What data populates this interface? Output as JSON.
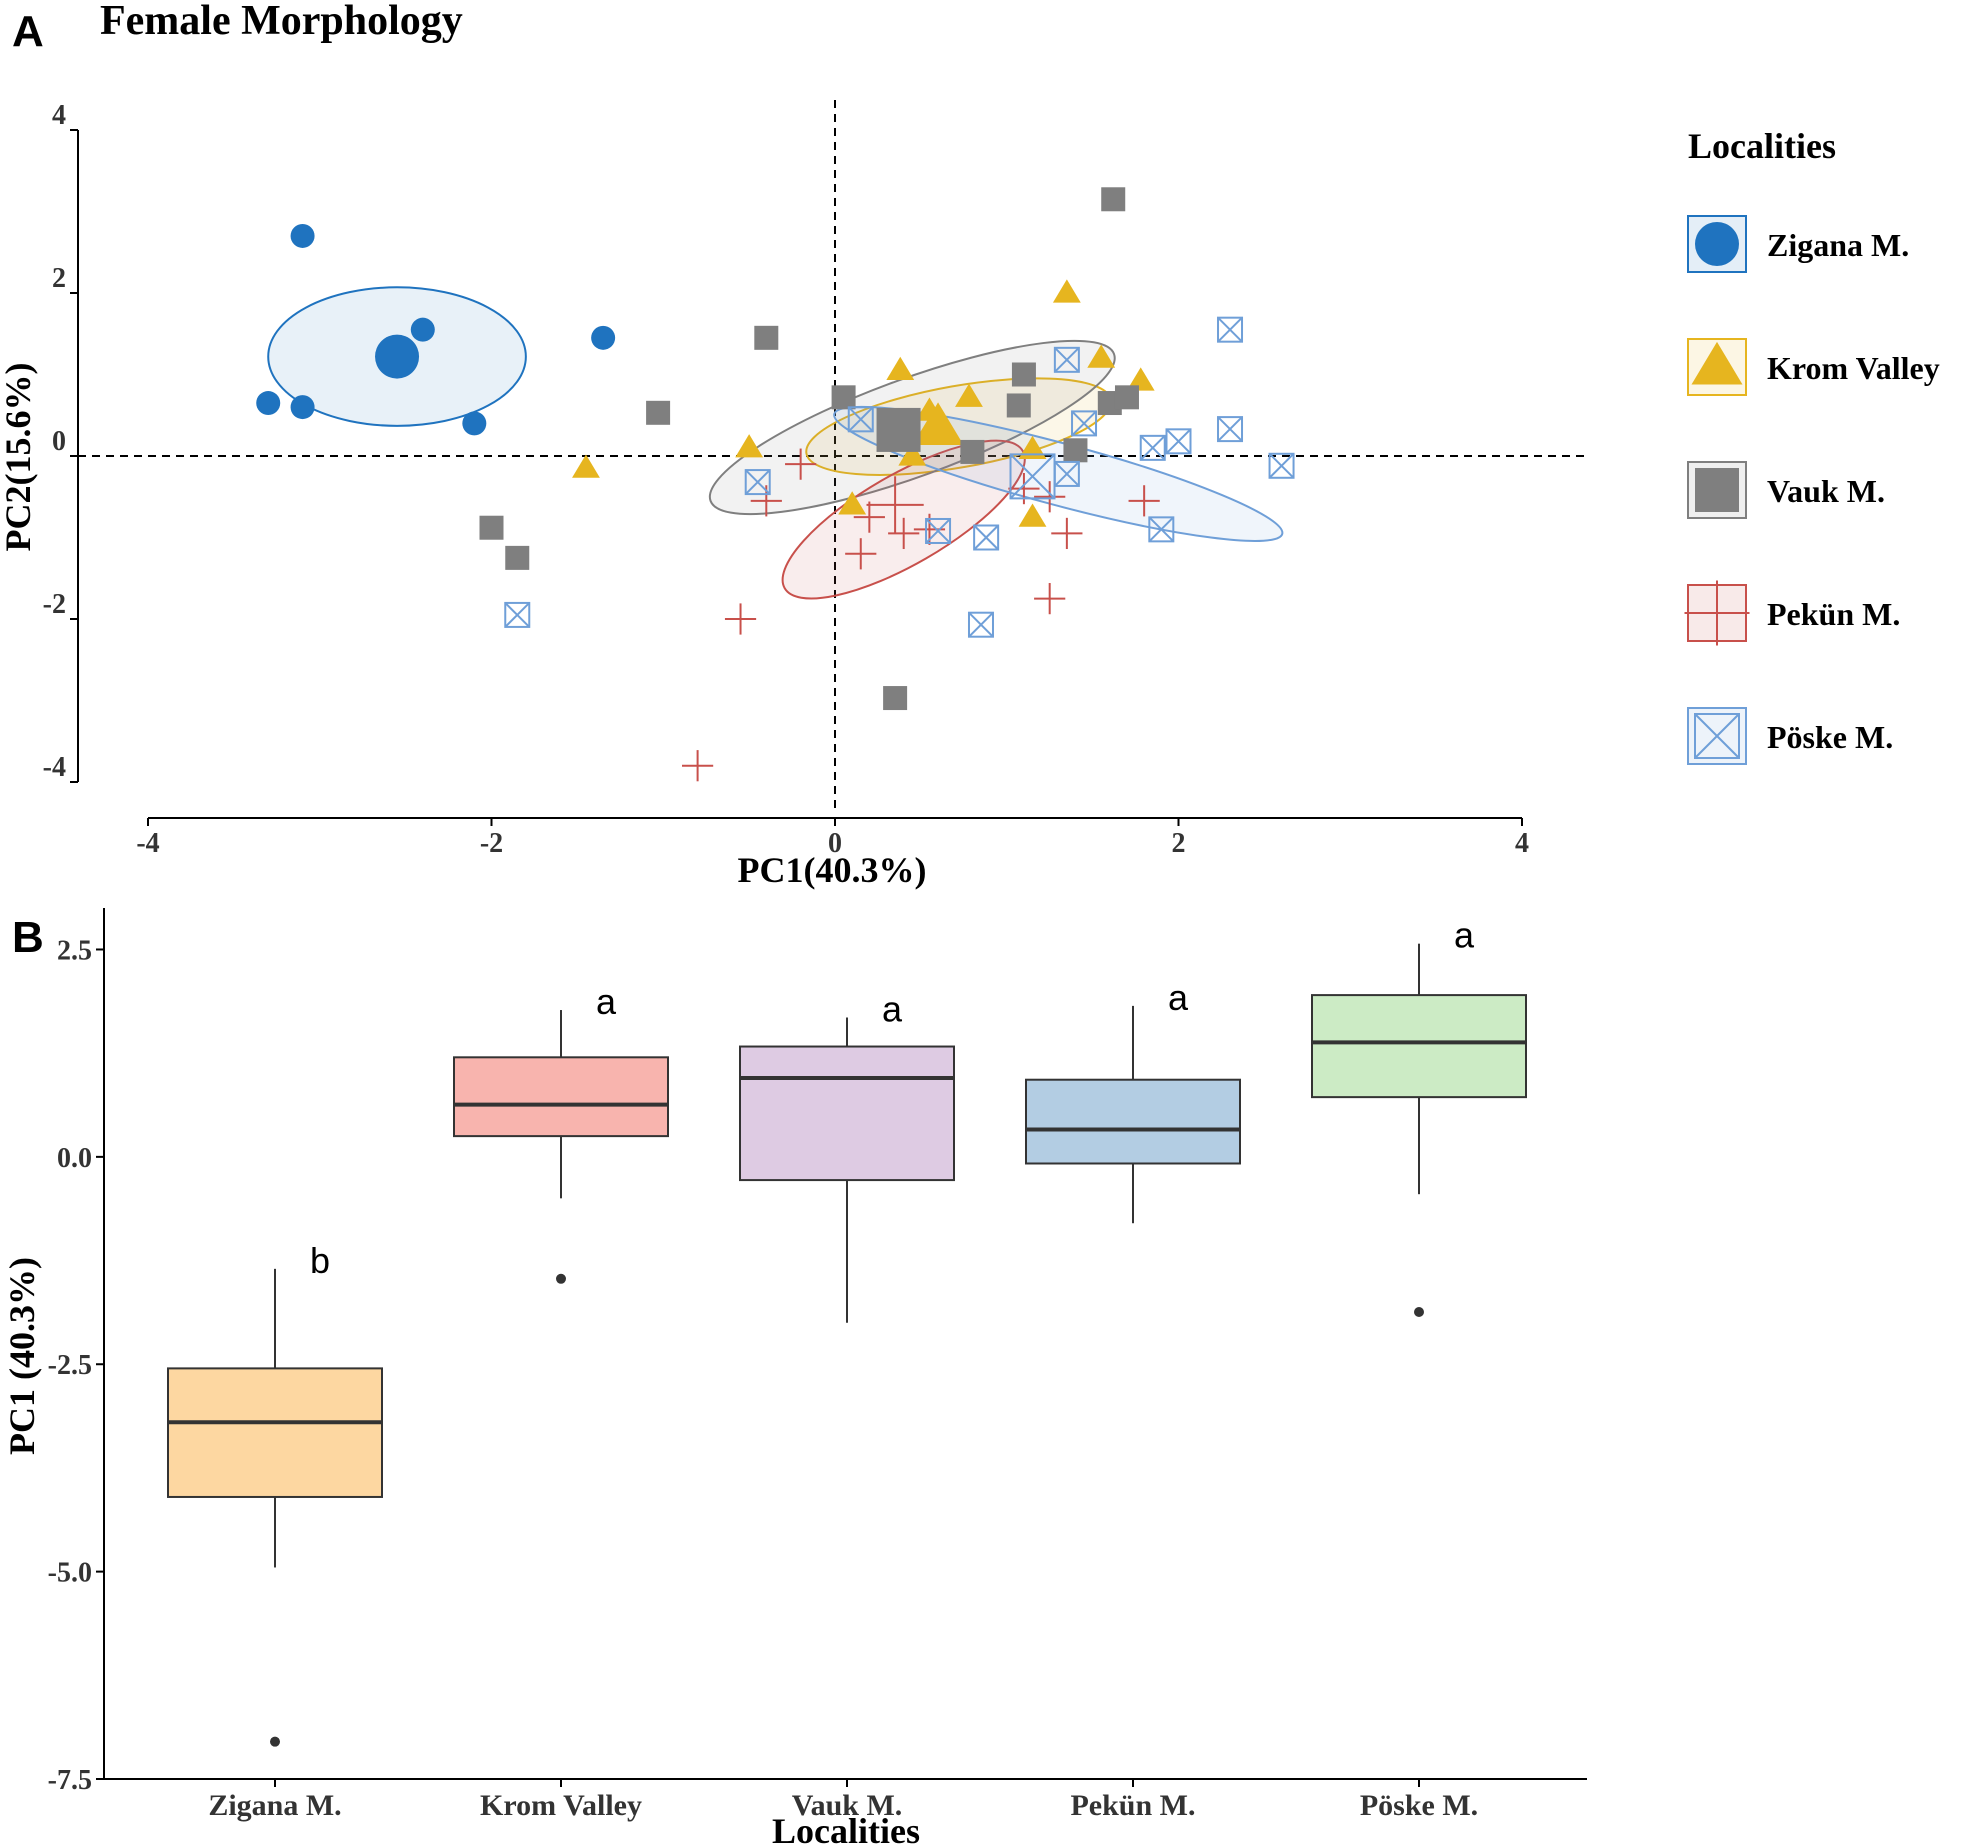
{
  "panel_labels": {
    "a": "A",
    "b": "B"
  },
  "chart_data": [
    {
      "type": "scatter",
      "title": "Female Morphology",
      "xlabel": "PC1(40.3%)",
      "ylabel": "PC2(15.6%)",
      "xlim": [
        -4,
        4
      ],
      "ylim": [
        -4,
        4
      ],
      "xticks": [
        -4,
        -2,
        0,
        2,
        4
      ],
      "yticks": [
        4,
        2,
        0,
        -2,
        -4
      ],
      "reference_lines": {
        "x": 0,
        "y": 0,
        "style": "dashed"
      },
      "grid": false,
      "legend": {
        "title": "Localities",
        "placement": "right",
        "items": [
          {
            "name": "Zigana M.",
            "shape": "circle",
            "color": "#1f73bf"
          },
          {
            "name": "Krom Valley",
            "shape": "triangle",
            "color": "#e6b51f"
          },
          {
            "name": "Vauk M.",
            "shape": "square",
            "color": "#7f7f7f"
          },
          {
            "name": "Pekün M.",
            "shape": "plus",
            "color": "#c8504b"
          },
          {
            "name": "Pöske M.",
            "shape": "square-x",
            "color": "#6f9fd8"
          }
        ]
      },
      "series": [
        {
          "name": "Zigana M.",
          "shape": "circle",
          "color": "#1f73bf",
          "points": [
            [
              -3.1,
              2.7
            ],
            [
              -2.4,
              1.55
            ],
            [
              -1.35,
              1.45
            ],
            [
              -3.3,
              0.65
            ],
            [
              -3.1,
              0.6
            ],
            [
              -2.1,
              0.4
            ]
          ],
          "centroid": [
            -2.55,
            1.22
          ],
          "ellipse": {
            "cx": -2.55,
            "cy": 1.22,
            "rx": 0.75,
            "ry": 0.85,
            "angle": 0
          }
        },
        {
          "name": "Krom Valley",
          "shape": "triangle",
          "color": "#e6b51f",
          "points": [
            [
              1.35,
              2.0
            ],
            [
              1.55,
              1.2
            ],
            [
              1.78,
              0.92
            ],
            [
              0.38,
              1.05
            ],
            [
              0.78,
              0.72
            ],
            [
              0.55,
              0.55
            ],
            [
              0.6,
              0.4
            ],
            [
              -0.5,
              0.1
            ],
            [
              -1.45,
              -0.15
            ],
            [
              1.15,
              0.08
            ],
            [
              0.45,
              0.0
            ],
            [
              0.1,
              -0.6
            ],
            [
              1.15,
              -0.75
            ]
          ],
          "centroid": [
            0.6,
            0.35
          ],
          "ellipse": {
            "cx": 0.72,
            "cy": 0.36,
            "rx": 0.9,
            "ry": 0.5,
            "angle": -10
          }
        },
        {
          "name": "Vauk M.",
          "shape": "square",
          "color": "#7f7f7f",
          "points": [
            [
              1.62,
              3.15
            ],
            [
              -0.4,
              1.45
            ],
            [
              -1.03,
              0.53
            ],
            [
              0.05,
              0.72
            ],
            [
              1.1,
              1.0
            ],
            [
              1.07,
              0.62
            ],
            [
              1.6,
              0.65
            ],
            [
              1.7,
              0.72
            ],
            [
              0.8,
              0.05
            ],
            [
              1.4,
              0.07
            ],
            [
              -2.0,
              -0.88
            ],
            [
              -1.85,
              -1.25
            ],
            [
              0.35,
              -2.97
            ]
          ],
          "centroid": [
            0.37,
            0.32
          ],
          "ellipse": {
            "cx": 0.45,
            "cy": 0.35,
            "rx": 1.25,
            "ry": 0.6,
            "angle": -20
          }
        },
        {
          "name": "Pekün M.",
          "shape": "plus",
          "color": "#c8504b",
          "points": [
            [
              -0.2,
              -0.1
            ],
            [
              -0.4,
              -0.55
            ],
            [
              0.2,
              -0.75
            ],
            [
              0.15,
              -1.2
            ],
            [
              0.4,
              -0.95
            ],
            [
              0.55,
              -0.9
            ],
            [
              1.1,
              -0.4
            ],
            [
              1.25,
              -0.5
            ],
            [
              1.35,
              -0.95
            ],
            [
              1.8,
              -0.55
            ],
            [
              1.25,
              -1.75
            ],
            [
              -0.55,
              -2.0
            ],
            [
              -0.8,
              -3.8
            ]
          ],
          "centroid": [
            0.35,
            -0.6
          ],
          "ellipse": {
            "cx": 0.4,
            "cy": -0.78,
            "rx": 0.8,
            "ry": 0.55,
            "angle": -30
          }
        },
        {
          "name": "Pöske M.",
          "shape": "square-x",
          "color": "#6f9fd8",
          "points": [
            [
              2.3,
              1.55
            ],
            [
              1.35,
              1.18
            ],
            [
              1.45,
              0.4
            ],
            [
              0.15,
              0.45
            ],
            [
              1.85,
              0.1
            ],
            [
              2.0,
              0.18
            ],
            [
              2.3,
              0.33
            ],
            [
              2.6,
              -0.12
            ],
            [
              1.35,
              -0.22
            ],
            [
              -0.45,
              -0.32
            ],
            [
              0.6,
              -0.92
            ],
            [
              0.88,
              -1.0
            ],
            [
              1.9,
              -0.9
            ],
            [
              0.85,
              -2.07
            ],
            [
              -1.85,
              -1.95
            ]
          ],
          "centroid": [
            1.15,
            -0.25
          ],
          "ellipse": {
            "cx": 1.3,
            "cy": -0.22,
            "rx": 1.35,
            "ry": 0.38,
            "angle": 15
          }
        }
      ]
    },
    {
      "type": "box",
      "xlabel": "Localities",
      "ylabel": "PC1 (40.3%)",
      "ylim": [
        -7.5,
        3.0
      ],
      "yticks": [
        2.5,
        0.0,
        -2.5,
        -5.0,
        -7.5
      ],
      "ytick_labels": [
        "2.5",
        "0.0",
        "-2.5",
        "-5.0",
        "-7.5"
      ],
      "grid": false,
      "categories": [
        "Zigana M.",
        "Krom Valley",
        "Vauk M.",
        "Pekün M.",
        "Pöske M."
      ],
      "boxes": [
        {
          "name": "Zigana M.",
          "color": "#fdd7a1",
          "whisker_low": -4.95,
          "q1": -4.1,
          "median": -3.2,
          "q3": -2.55,
          "whisker_high": -1.35,
          "outliers": [
            -7.05
          ],
          "letter": "b"
        },
        {
          "name": "Krom Valley",
          "color": "#f8b4ae",
          "whisker_low": -0.5,
          "q1": 0.25,
          "median": 0.63,
          "q3": 1.2,
          "whisker_high": 1.77,
          "outliers": [
            -1.47
          ],
          "letter": "a"
        },
        {
          "name": "Vauk M.",
          "color": "#decbe3",
          "whisker_low": -2.0,
          "q1": -0.28,
          "median": 0.95,
          "q3": 1.33,
          "whisker_high": 1.68,
          "outliers": [],
          "letter": "a"
        },
        {
          "name": "Pekün M.",
          "color": "#b3cde3",
          "whisker_low": -0.8,
          "q1": -0.08,
          "median": 0.33,
          "q3": 0.93,
          "whisker_high": 1.82,
          "outliers": [],
          "letter": "a"
        },
        {
          "name": "Pöske M.",
          "color": "#ccebc5",
          "whisker_low": -0.45,
          "q1": 0.72,
          "median": 1.38,
          "q3": 1.95,
          "whisker_high": 2.57,
          "outliers": [
            -1.87
          ],
          "letter": "a"
        }
      ]
    }
  ]
}
